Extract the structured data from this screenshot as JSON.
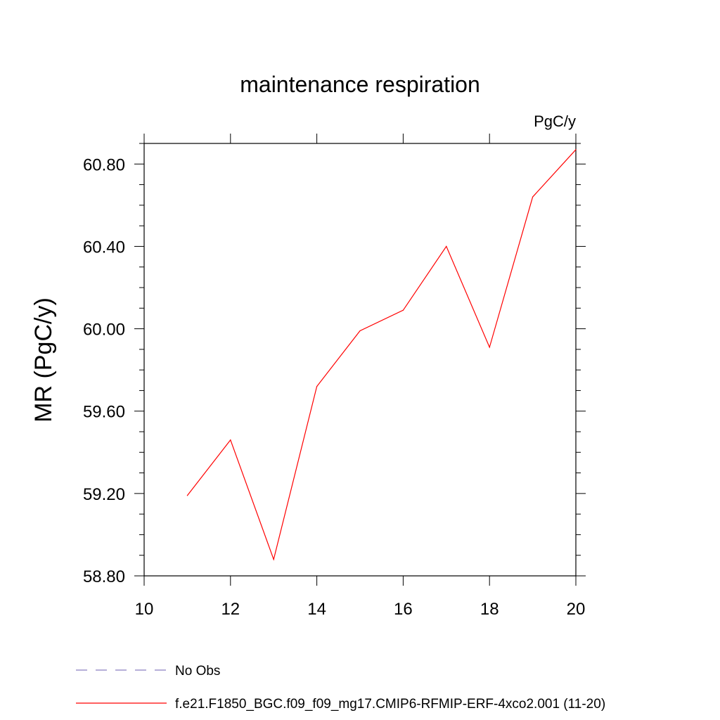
{
  "chart_data": {
    "type": "line",
    "title": "maintenance respiration",
    "units_label": "PgC/y",
    "xlabel": "",
    "ylabel": "MR  (PgC/y)",
    "xlim": [
      10,
      20
    ],
    "ylim": [
      58.8,
      60.9
    ],
    "x_ticks": [
      10,
      12,
      14,
      16,
      18,
      20
    ],
    "x_tick_labels": [
      "10",
      "12",
      "14",
      "16",
      "18",
      "20"
    ],
    "y_ticks": [
      58.8,
      59.2,
      59.6,
      60.0,
      60.4,
      60.8
    ],
    "y_tick_labels": [
      "58.80",
      "59.20",
      "59.60",
      "60.00",
      "60.40",
      "60.80"
    ],
    "grid": false,
    "legend_position": "bottom",
    "series": [
      {
        "name": "f.e21.F1850_BGC.f09_f09_mg17.CMIP6-RFMIP-ERF-4xco2.001 (11-20)",
        "color": "#ff0000",
        "style": "solid",
        "x": [
          11,
          12,
          13,
          14,
          15,
          16,
          17,
          18,
          19,
          20
        ],
        "y": [
          59.19,
          59.46,
          58.88,
          59.72,
          59.99,
          60.09,
          60.4,
          59.91,
          60.64,
          60.87
        ]
      }
    ],
    "legend": [
      {
        "label": "No Obs",
        "color": "#8a7fc0",
        "style": "dashed"
      },
      {
        "label": "f.e21.F1850_BGC.f09_f09_mg17.CMIP6-RFMIP-ERF-4xco2.001 (11-20)",
        "color": "#ff0000",
        "style": "solid"
      }
    ]
  }
}
